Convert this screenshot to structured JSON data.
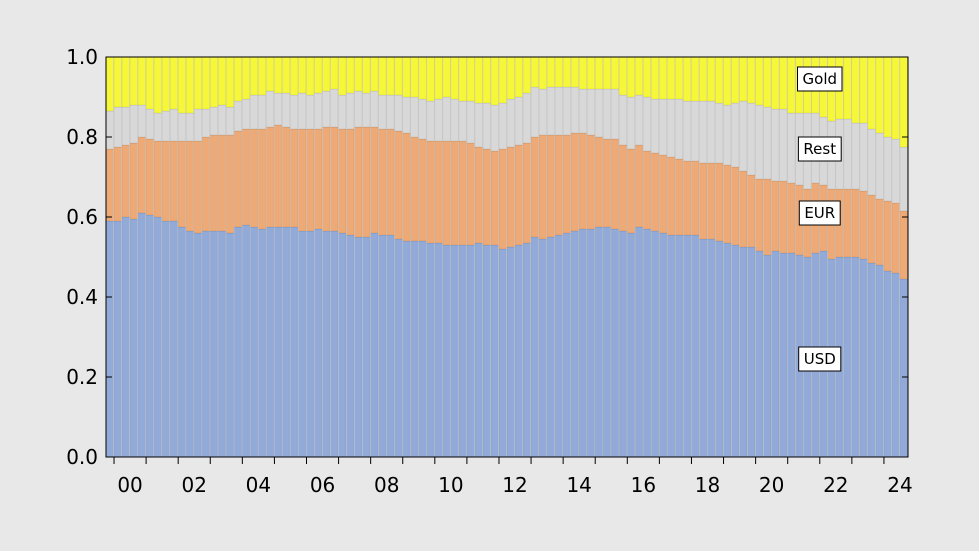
{
  "chart_data": {
    "type": "area",
    "stacked": true,
    "x_tick_labels": [
      "00",
      "02",
      "04",
      "06",
      "08",
      "10",
      "12",
      "14",
      "16",
      "18",
      "20",
      "22",
      "24"
    ],
    "y_tick_labels": [
      "0.0",
      "0.2",
      "0.4",
      "0.6",
      "0.8",
      "1.0"
    ],
    "xlim": [
      1999.75,
      2024.75
    ],
    "ylim": [
      0,
      1
    ],
    "grid": false,
    "x": [
      1999.875,
      2000.125,
      2000.375,
      2000.625,
      2000.875,
      2001.125,
      2001.375,
      2001.625,
      2001.875,
      2002.125,
      2002.375,
      2002.625,
      2002.875,
      2003.125,
      2003.375,
      2003.625,
      2003.875,
      2004.125,
      2004.375,
      2004.625,
      2004.875,
      2005.125,
      2005.375,
      2005.625,
      2005.875,
      2006.125,
      2006.375,
      2006.625,
      2006.875,
      2007.125,
      2007.375,
      2007.625,
      2007.875,
      2008.125,
      2008.375,
      2008.625,
      2008.875,
      2009.125,
      2009.375,
      2009.625,
      2009.875,
      2010.125,
      2010.375,
      2010.625,
      2010.875,
      2011.125,
      2011.375,
      2011.625,
      2011.875,
      2012.125,
      2012.375,
      2012.625,
      2012.875,
      2013.125,
      2013.375,
      2013.625,
      2013.875,
      2014.125,
      2014.375,
      2014.625,
      2014.875,
      2015.125,
      2015.375,
      2015.625,
      2015.875,
      2016.125,
      2016.375,
      2016.625,
      2016.875,
      2017.125,
      2017.375,
      2017.625,
      2017.875,
      2018.125,
      2018.375,
      2018.625,
      2018.875,
      2019.125,
      2019.375,
      2019.625,
      2019.875,
      2020.125,
      2020.375,
      2020.625,
      2020.875,
      2021.125,
      2021.375,
      2021.625,
      2021.875,
      2022.125,
      2022.375,
      2022.625,
      2022.875,
      2023.125,
      2023.375,
      2023.625,
      2023.875,
      2024.125,
      2024.375,
      2024.625
    ],
    "series": [
      {
        "name": "USD",
        "color": "#92aad8",
        "values": [
          0.59,
          0.59,
          0.6,
          0.595,
          0.61,
          0.605,
          0.6,
          0.59,
          0.59,
          0.575,
          0.565,
          0.56,
          0.565,
          0.565,
          0.565,
          0.56,
          0.575,
          0.58,
          0.575,
          0.57,
          0.575,
          0.575,
          0.575,
          0.575,
          0.565,
          0.565,
          0.57,
          0.565,
          0.565,
          0.56,
          0.555,
          0.55,
          0.55,
          0.56,
          0.555,
          0.555,
          0.545,
          0.54,
          0.54,
          0.54,
          0.535,
          0.535,
          0.53,
          0.53,
          0.53,
          0.53,
          0.535,
          0.53,
          0.53,
          0.52,
          0.525,
          0.53,
          0.535,
          0.55,
          0.545,
          0.55,
          0.555,
          0.56,
          0.565,
          0.57,
          0.57,
          0.575,
          0.575,
          0.57,
          0.565,
          0.56,
          0.575,
          0.57,
          0.565,
          0.56,
          0.555,
          0.555,
          0.555,
          0.555,
          0.545,
          0.545,
          0.54,
          0.535,
          0.53,
          0.525,
          0.525,
          0.515,
          0.505,
          0.515,
          0.51,
          0.51,
          0.505,
          0.5,
          0.51,
          0.515,
          0.495,
          0.5,
          0.5,
          0.5,
          0.495,
          0.485,
          0.48,
          0.465,
          0.46,
          0.445
        ]
      },
      {
        "name": "EUR",
        "color": "#edaa76",
        "values": [
          0.18,
          0.185,
          0.18,
          0.19,
          0.19,
          0.19,
          0.19,
          0.2,
          0.2,
          0.215,
          0.225,
          0.23,
          0.235,
          0.24,
          0.24,
          0.245,
          0.24,
          0.24,
          0.245,
          0.25,
          0.25,
          0.255,
          0.25,
          0.245,
          0.255,
          0.255,
          0.25,
          0.26,
          0.26,
          0.26,
          0.265,
          0.275,
          0.275,
          0.265,
          0.265,
          0.265,
          0.27,
          0.27,
          0.26,
          0.255,
          0.255,
          0.255,
          0.26,
          0.26,
          0.26,
          0.255,
          0.24,
          0.24,
          0.235,
          0.25,
          0.25,
          0.25,
          0.25,
          0.25,
          0.26,
          0.255,
          0.25,
          0.245,
          0.245,
          0.24,
          0.235,
          0.225,
          0.22,
          0.225,
          0.215,
          0.21,
          0.205,
          0.195,
          0.195,
          0.195,
          0.195,
          0.19,
          0.185,
          0.185,
          0.19,
          0.19,
          0.195,
          0.195,
          0.195,
          0.19,
          0.18,
          0.18,
          0.19,
          0.175,
          0.18,
          0.175,
          0.175,
          0.17,
          0.175,
          0.165,
          0.175,
          0.17,
          0.17,
          0.17,
          0.17,
          0.17,
          0.165,
          0.175,
          0.175,
          0.17
        ]
      },
      {
        "name": "Rest",
        "color": "#d8d8d8",
        "values": [
          0.095,
          0.1,
          0.095,
          0.095,
          0.08,
          0.075,
          0.07,
          0.075,
          0.08,
          0.07,
          0.07,
          0.08,
          0.07,
          0.07,
          0.075,
          0.07,
          0.075,
          0.075,
          0.085,
          0.085,
          0.09,
          0.08,
          0.085,
          0.085,
          0.09,
          0.085,
          0.09,
          0.09,
          0.095,
          0.085,
          0.09,
          0.09,
          0.085,
          0.09,
          0.085,
          0.085,
          0.09,
          0.09,
          0.1,
          0.1,
          0.1,
          0.105,
          0.11,
          0.105,
          0.1,
          0.105,
          0.11,
          0.115,
          0.115,
          0.115,
          0.12,
          0.12,
          0.125,
          0.125,
          0.115,
          0.12,
          0.12,
          0.12,
          0.115,
          0.11,
          0.115,
          0.12,
          0.125,
          0.125,
          0.125,
          0.13,
          0.125,
          0.135,
          0.135,
          0.14,
          0.145,
          0.15,
          0.15,
          0.15,
          0.155,
          0.155,
          0.15,
          0.15,
          0.16,
          0.175,
          0.18,
          0.185,
          0.18,
          0.18,
          0.18,
          0.175,
          0.18,
          0.19,
          0.175,
          0.17,
          0.17,
          0.175,
          0.175,
          0.165,
          0.17,
          0.165,
          0.165,
          0.16,
          0.16,
          0.16
        ]
      },
      {
        "name": "Gold",
        "color": "#f7f73a",
        "values": [
          0.135,
          0.125,
          0.125,
          0.12,
          0.12,
          0.13,
          0.14,
          0.135,
          0.13,
          0.14,
          0.14,
          0.13,
          0.13,
          0.125,
          0.12,
          0.125,
          0.11,
          0.105,
          0.095,
          0.095,
          0.085,
          0.09,
          0.09,
          0.095,
          0.09,
          0.095,
          0.09,
          0.085,
          0.08,
          0.095,
          0.09,
          0.085,
          0.09,
          0.085,
          0.095,
          0.095,
          0.095,
          0.1,
          0.1,
          0.105,
          0.11,
          0.105,
          0.1,
          0.105,
          0.11,
          0.11,
          0.115,
          0.115,
          0.12,
          0.115,
          0.105,
          0.1,
          0.09,
          0.075,
          0.08,
          0.075,
          0.075,
          0.075,
          0.075,
          0.08,
          0.08,
          0.08,
          0.08,
          0.08,
          0.095,
          0.1,
          0.095,
          0.1,
          0.105,
          0.105,
          0.105,
          0.105,
          0.11,
          0.11,
          0.11,
          0.11,
          0.115,
          0.12,
          0.115,
          0.11,
          0.115,
          0.12,
          0.125,
          0.13,
          0.13,
          0.14,
          0.14,
          0.14,
          0.14,
          0.15,
          0.16,
          0.155,
          0.155,
          0.165,
          0.165,
          0.18,
          0.19,
          0.2,
          0.205,
          0.225
        ]
      }
    ],
    "labels": [
      {
        "text": "Gold",
        "x": 2022.0,
        "y": 0.945
      },
      {
        "text": "Rest",
        "x": 2022.0,
        "y": 0.77
      },
      {
        "text": "EUR",
        "x": 2022.0,
        "y": 0.61
      },
      {
        "text": "USD",
        "x": 2022.0,
        "y": 0.245
      }
    ]
  }
}
